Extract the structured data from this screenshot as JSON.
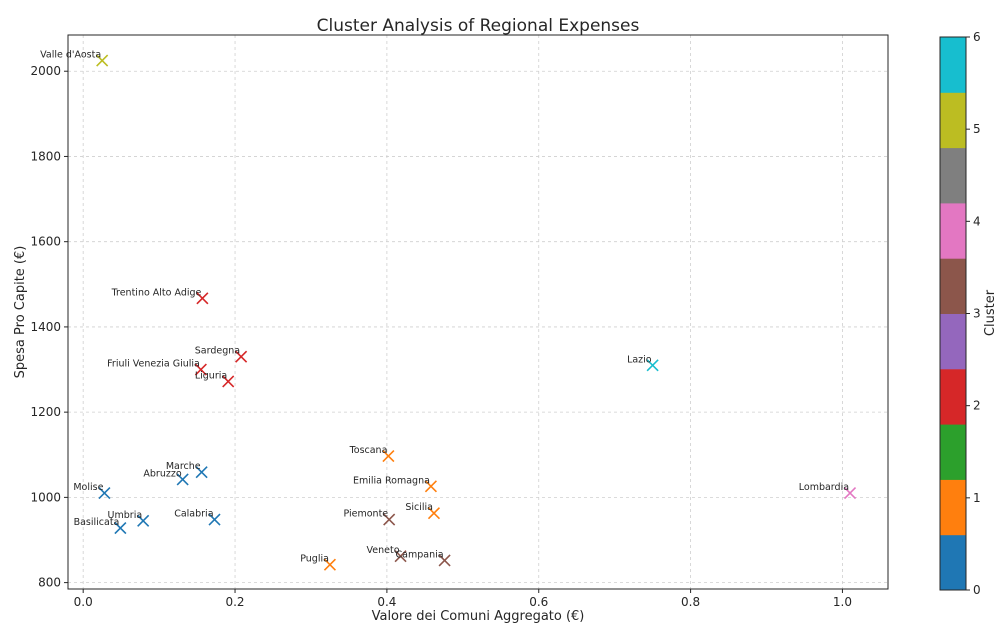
{
  "chart_data": {
    "type": "scatter",
    "title": "Cluster Analysis of Regional Expenses",
    "xlabel": "Valore dei Comuni Aggregato (€)",
    "ylabel": "Spesa Pro Capite (€)",
    "xlim": [
      -0.02,
      1.06
    ],
    "ylim": [
      785,
      2085
    ],
    "xticks": [
      "0.0",
      "0.2",
      "0.4",
      "0.6",
      "0.8",
      "1.0"
    ],
    "xtick_values": [
      0.0,
      0.2,
      0.4,
      0.6,
      0.8,
      1.0
    ],
    "yticks": [
      "800",
      "1000",
      "1200",
      "1400",
      "1600",
      "1800",
      "2000"
    ],
    "ytick_values": [
      800,
      1000,
      1200,
      1400,
      1600,
      1800,
      2000
    ],
    "grid": true,
    "marker": "x",
    "colorbar": {
      "label": "Cluster",
      "range": [
        0,
        6
      ],
      "ticks": [
        "0",
        "1",
        "2",
        "3",
        "4",
        "5",
        "6"
      ],
      "tick_values": [
        0,
        1,
        2,
        3,
        4,
        5,
        6
      ],
      "colors": [
        "#1f77b4",
        "#ff7f0e",
        "#2ca02c",
        "#d62728",
        "#9467bd",
        "#8c564b",
        "#e377c2",
        "#7f7f7f",
        "#bcbd22",
        "#17becf"
      ]
    },
    "points": [
      {
        "label": "Valle d'Aosta",
        "x": 0.025,
        "y": 2025,
        "cluster": 5
      },
      {
        "label": "Trentino Alto Adige",
        "x": 0.157,
        "y": 1467,
        "cluster": 2
      },
      {
        "label": "Sardegna",
        "x": 0.208,
        "y": 1330,
        "cluster": 2
      },
      {
        "label": "Friuli Venezia Giulia",
        "x": 0.155,
        "y": 1300,
        "cluster": 2
      },
      {
        "label": "Liguria",
        "x": 0.191,
        "y": 1272,
        "cluster": 2
      },
      {
        "label": "Lazio",
        "x": 0.75,
        "y": 1310,
        "cluster": 6
      },
      {
        "label": "Toscana",
        "x": 0.402,
        "y": 1097,
        "cluster": 1
      },
      {
        "label": "Marche",
        "x": 0.156,
        "y": 1059,
        "cluster": 0
      },
      {
        "label": "Abruzzo",
        "x": 0.131,
        "y": 1042,
        "cluster": 0
      },
      {
        "label": "Emilia Romagna",
        "x": 0.458,
        "y": 1026,
        "cluster": 1
      },
      {
        "label": "Lombardia",
        "x": 1.01,
        "y": 1010,
        "cluster": 4
      },
      {
        "label": "Molise",
        "x": 0.028,
        "y": 1010,
        "cluster": 0
      },
      {
        "label": "Sicilia",
        "x": 0.462,
        "y": 963,
        "cluster": 1
      },
      {
        "label": "Piemonte",
        "x": 0.403,
        "y": 948,
        "cluster": 3
      },
      {
        "label": "Umbria",
        "x": 0.079,
        "y": 945,
        "cluster": 0
      },
      {
        "label": "Calabria",
        "x": 0.173,
        "y": 948,
        "cluster": 0
      },
      {
        "label": "Basilicata",
        "x": 0.049,
        "y": 928,
        "cluster": 0
      },
      {
        "label": "Veneto",
        "x": 0.418,
        "y": 862,
        "cluster": 3
      },
      {
        "label": "Campania",
        "x": 0.476,
        "y": 852,
        "cluster": 3
      },
      {
        "label": "Puglia",
        "x": 0.325,
        "y": 842,
        "cluster": 1
      }
    ]
  }
}
